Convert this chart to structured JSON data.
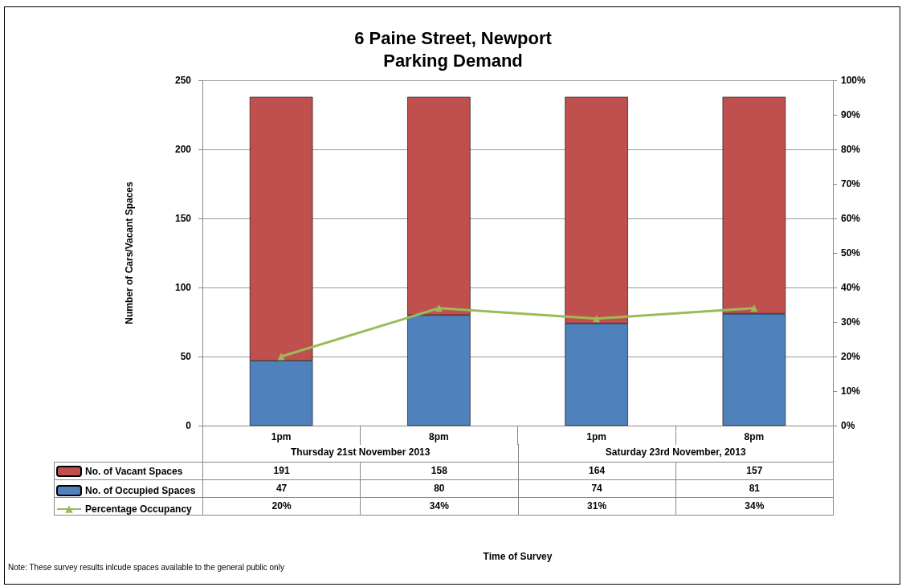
{
  "chart_data": {
    "type": "bar",
    "title": "6 Paine Street, Newport\nParking Demand",
    "ylabel": "Number of Cars/Vacant Spaces",
    "categories": [
      "1pm",
      "8pm",
      "1pm",
      "8pm"
    ],
    "series": [
      {
        "name": "No. of Occupied Spaces",
        "color": "#4f81bd",
        "values": [
          47,
          80,
          74,
          81
        ]
      },
      {
        "name": "No. of Vacant Spaces",
        "color": "#c0504d",
        "values": [
          191,
          158,
          164,
          157
        ]
      },
      {
        "name": "Percentage Occupancy",
        "type": "line",
        "axis": "y2",
        "color": "#9bbb59",
        "marker": "triangle",
        "values": [
          20,
          34,
          31,
          34
        ],
        "value_labels": [
          "20%",
          "34%",
          "31%",
          "34%"
        ]
      }
    ],
    "stacked": true,
    "data_labels": true,
    "grid": "y",
    "legend": "bottom left",
    "ylim": [
      0,
      250
    ],
    "yticks": [
      0,
      50,
      100,
      150,
      200,
      250
    ],
    "y2lim": [
      0,
      100
    ],
    "y2ticks": [
      {
        "value": 0,
        "label": "0%"
      },
      {
        "value": 10,
        "label": "10%"
      },
      {
        "value": 20,
        "label": "20%"
      },
      {
        "value": 30,
        "label": "30%"
      },
      {
        "value": 40,
        "label": "40%"
      },
      {
        "value": 50,
        "label": "50%"
      },
      {
        "value": 60,
        "label": "60%"
      },
      {
        "value": 70,
        "label": "70%"
      },
      {
        "value": 80,
        "label": "80%"
      },
      {
        "value": 90,
        "label": "90%"
      },
      {
        "value": 100,
        "label": "100%"
      }
    ],
    "annotations": [
      "Thursday 21st November 2013",
      "Saturday 23rd November, 2013",
      "Time of Survey",
      "Note:  These survey results inlcude spaces available to the general public only"
    ]
  }
}
